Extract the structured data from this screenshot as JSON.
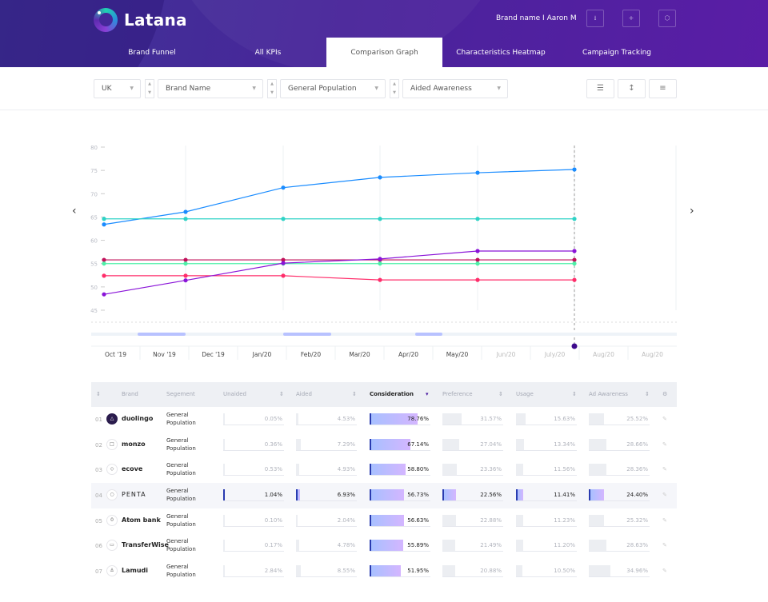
{
  "header": {
    "logo_text": "Latana",
    "brand_user": "Brand name  I  Aaron M",
    "buttons": [
      {
        "icon": "download-icon",
        "glyph": "⭳"
      },
      {
        "icon": "plus-icon",
        "glyph": "+"
      },
      {
        "icon": "settings-icon",
        "glyph": "⬡"
      }
    ]
  },
  "tabs": [
    {
      "label": "Brand Funnel"
    },
    {
      "label": "All KPIs"
    },
    {
      "label": "Comparison Graph",
      "active": true
    },
    {
      "label": "Characteristics Heatmap"
    },
    {
      "label": "Campaign Tracking"
    }
  ],
  "filters": {
    "country": "UK",
    "brand": "Brand Name",
    "segment": "General Population",
    "metric": "Aided Awareness"
  },
  "view_buttons": [
    {
      "icon": "list-icon",
      "glyph": "☰"
    },
    {
      "icon": "range-icon",
      "glyph": "↕"
    },
    {
      "icon": "bars-icon",
      "glyph": "≡"
    }
  ],
  "chart_data": {
    "type": "line",
    "ylim": [
      45,
      80
    ],
    "yticks": [
      80,
      75,
      70,
      65,
      60,
      55,
      50,
      45
    ],
    "grid": "vertical",
    "series": [
      {
        "color": "#1a8cff",
        "values": [
          63.4,
          66.1,
          71.3,
          73.5,
          74.5,
          75.2
        ]
      },
      {
        "color": "#2ed3c6",
        "values": [
          64.6,
          64.6,
          64.6,
          64.6,
          64.6,
          64.6
        ]
      },
      {
        "color": "#c0105a",
        "values": [
          55.8,
          55.8,
          55.8,
          55.8,
          55.8,
          55.8
        ]
      },
      {
        "color": "#4ef0a8",
        "values": [
          55.0,
          55.0,
          55.0,
          55.0,
          55.0,
          55.0
        ]
      },
      {
        "color": "#ff2d6a",
        "values": [
          52.4,
          52.4,
          52.4,
          51.5,
          51.5,
          51.5
        ]
      },
      {
        "color": "#8a14d8",
        "values": [
          48.4,
          51.4,
          55.1,
          56.0,
          57.7,
          57.7
        ]
      }
    ],
    "timeline": {
      "labels": [
        "Oct '19",
        "Nov '19",
        "Dec '19",
        "Jan/20",
        "Feb/20",
        "Mar/20",
        "Apr/20",
        "May/20",
        "Jun/20",
        "July/20",
        "Aug/20",
        "Aug/20"
      ],
      "active_count": 8,
      "marker_color": "#3d0a8c"
    }
  },
  "table": {
    "columns": [
      "Brand",
      "Segement",
      "Unaided",
      "Aided",
      "Consideration",
      "Preference",
      "Usage",
      "Ad Awareness"
    ],
    "sorted_column": "Consideration",
    "rows": [
      {
        "idx": "01",
        "brand": "duolingo",
        "segment": [
          "General",
          "Population"
        ],
        "values": [
          "0.05%",
          "4.53%",
          "78.76%",
          "31.57%",
          "15.63%",
          "25.52%"
        ],
        "fill": [
          0.05,
          4.53,
          78.76,
          31.57,
          15.63,
          25.52
        ]
      },
      {
        "idx": "02",
        "brand": "monzo",
        "segment": [
          "General",
          "Population"
        ],
        "values": [
          "0.36%",
          "7.29%",
          "67.14%",
          "27.04%",
          "13.34%",
          "28.66%"
        ],
        "fill": [
          0.36,
          7.29,
          67.14,
          27.04,
          13.34,
          28.66
        ]
      },
      {
        "idx": "03",
        "brand": "ecove",
        "segment": [
          "General",
          "Population"
        ],
        "values": [
          "0.53%",
          "4.93%",
          "58.80%",
          "23.36%",
          "11.56%",
          "28.36%"
        ],
        "fill": [
          0.53,
          4.93,
          58.8,
          23.36,
          11.56,
          28.36
        ]
      },
      {
        "idx": "04",
        "brand": "PENTA",
        "segment": [
          "General",
          "Population"
        ],
        "values": [
          "1.04%",
          "6.93%",
          "56.73%",
          "22.56%",
          "11.41%",
          "24.40%"
        ],
        "fill": [
          1.04,
          6.93,
          56.73,
          22.56,
          11.41,
          24.4
        ],
        "highlight": true
      },
      {
        "idx": "05",
        "brand": "Atom bank",
        "segment": [
          "General",
          "Population"
        ],
        "values": [
          "0.10%",
          "2.04%",
          "56.63%",
          "22.88%",
          "11.23%",
          "25.32%"
        ],
        "fill": [
          0.1,
          2.04,
          56.63,
          22.88,
          11.23,
          25.32
        ]
      },
      {
        "idx": "06",
        "brand": "TransferWise",
        "segment": [
          "General",
          "Population"
        ],
        "values": [
          "0.17%",
          "4.78%",
          "55.89%",
          "21.49%",
          "11.20%",
          "28.63%"
        ],
        "fill": [
          0.17,
          4.78,
          55.89,
          21.49,
          11.2,
          28.63
        ]
      },
      {
        "idx": "07",
        "brand": "Lamudi",
        "segment": [
          "General",
          "Population"
        ],
        "values": [
          "2.84%",
          "8.55%",
          "51.95%",
          "20.88%",
          "10.50%",
          "34.96%"
        ],
        "fill": [
          2.84,
          8.55,
          51.95,
          20.88,
          10.5,
          34.96
        ]
      }
    ]
  }
}
